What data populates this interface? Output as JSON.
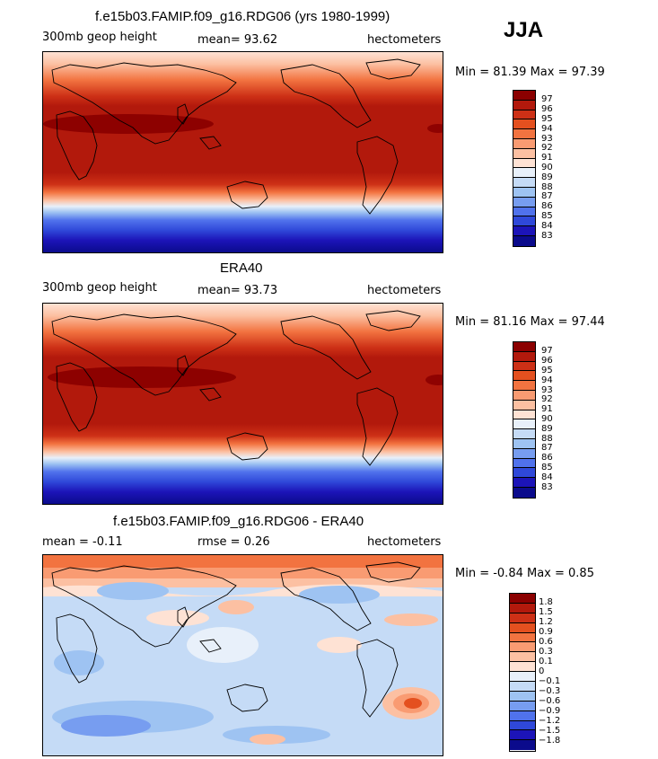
{
  "season": "JJA",
  "panels": [
    {
      "title": "f.e15b03.FAMIP.f09_g16.RDG06 (yrs 1980-1999)",
      "left_label": "300mb geop height",
      "center_label": "mean=  93.62",
      "right_label": "hectometers",
      "minmax": "Min =  81.39 Max =  97.39"
    },
    {
      "title": "ERA40",
      "left_label": "300mb geop height",
      "center_label": "mean=  93.73",
      "right_label": "hectometers",
      "minmax": "Min =  81.16 Max =  97.44"
    },
    {
      "title": "f.e15b03.FAMIP.f09_g16.RDG06 - ERA40",
      "left_label": "mean =  -0.11",
      "center_label": "rmse =   0.26",
      "right_label": "hectometers",
      "minmax": "Min =  -0.84 Max =   0.85"
    }
  ],
  "chart_data": [
    {
      "type": "heatmap",
      "title": "f.e15b03.FAMIP.f09_g16.RDG06 (yrs 1980-1999)",
      "variable": "300mb geop height",
      "units": "hectometers",
      "mean": 93.62,
      "min": 81.39,
      "max": 97.39,
      "colorbar_levels": [
        "97",
        "96",
        "95",
        "94",
        "93",
        "92",
        "91",
        "90",
        "89",
        "88",
        "87",
        "86",
        "85",
        "84",
        "83"
      ],
      "colors": [
        "#8b0000",
        "#b2190c",
        "#cd3016",
        "#e4501f",
        "#f27340",
        "#f99b72",
        "#fcc0a2",
        "#fee2d4",
        "#e8f0fa",
        "#c5dbf6",
        "#9ec3f2",
        "#779df0",
        "#5072ec",
        "#2f48d9",
        "#1c14b8",
        "#0b0b8c"
      ]
    },
    {
      "type": "heatmap",
      "title": "ERA40",
      "variable": "300mb geop height",
      "units": "hectometers",
      "mean": 93.73,
      "min": 81.16,
      "max": 97.44,
      "colorbar_levels": [
        "97",
        "96",
        "95",
        "94",
        "93",
        "92",
        "91",
        "90",
        "89",
        "88",
        "87",
        "86",
        "85",
        "84",
        "83"
      ],
      "colors": [
        "#8b0000",
        "#b2190c",
        "#cd3016",
        "#e4501f",
        "#f27340",
        "#f99b72",
        "#fcc0a2",
        "#fee2d4",
        "#e8f0fa",
        "#c5dbf6",
        "#9ec3f2",
        "#779df0",
        "#5072ec",
        "#2f48d9",
        "#1c14b8",
        "#0b0b8c"
      ]
    },
    {
      "type": "heatmap",
      "title": "f.e15b03.FAMIP.f09_g16.RDG06 - ERA40",
      "units": "hectometers",
      "mean": -0.11,
      "rmse": 0.26,
      "min": -0.84,
      "max": 0.85,
      "colorbar_levels": [
        "1.8",
        "1.5",
        "1.2",
        "0.9",
        "0.6",
        "0.3",
        "0.1",
        "0",
        "−0.1",
        "−0.3",
        "−0.6",
        "−0.9",
        "−1.2",
        "−1.5",
        "−1.8"
      ],
      "colors": [
        "#8b0000",
        "#b2190c",
        "#cd3016",
        "#e4501f",
        "#f27340",
        "#f99b72",
        "#fcc0a2",
        "#fee2d4",
        "#e8f0fa",
        "#c5dbf6",
        "#9ec3f2",
        "#779df0",
        "#5072ec",
        "#2f48d9",
        "#1c14b8",
        "#0b0b8c"
      ]
    }
  ]
}
